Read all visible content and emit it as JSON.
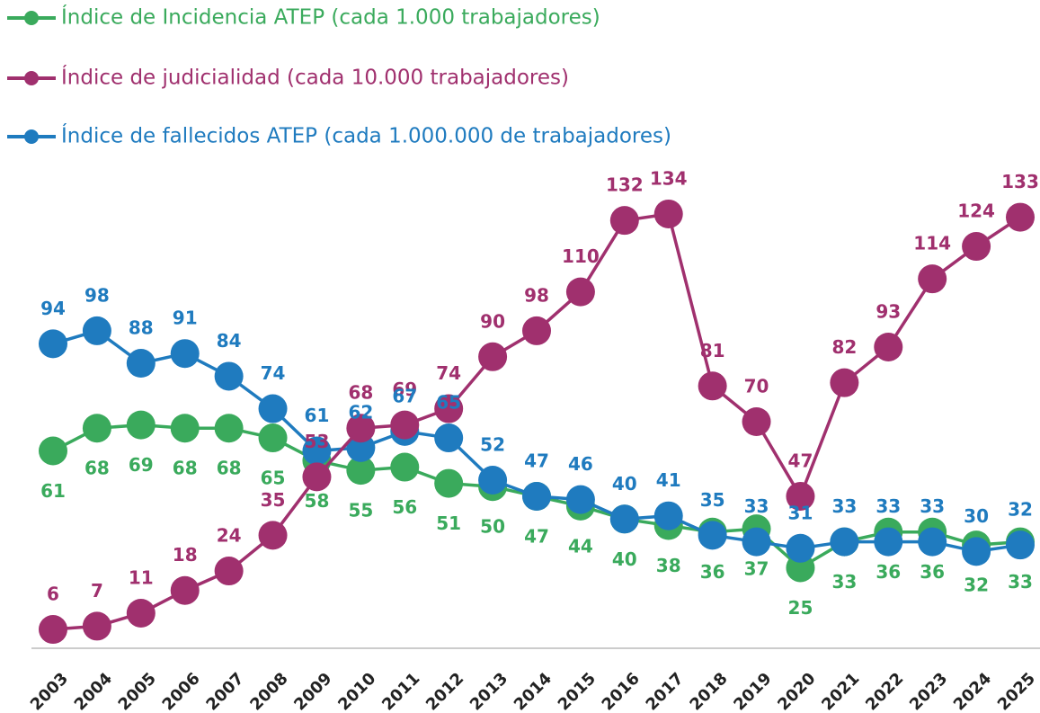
{
  "chart_data": {
    "type": "line",
    "categories": [
      "2003",
      "2004",
      "2005",
      "2006",
      "2007",
      "2008",
      "2009",
      "2010",
      "2011",
      "2012",
      "2013",
      "2014",
      "2015",
      "2016",
      "2017",
      "2018",
      "2019",
      "2020",
      "2021",
      "2022",
      "2023",
      "2024",
      "2025"
    ],
    "series": [
      {
        "name": "Índice de Incidencia ATEP (cada 1.000 trabajadores)",
        "color": "#3aaa5c",
        "values": [
          61,
          68,
          69,
          68,
          68,
          65,
          58,
          55,
          56,
          51,
          50,
          47,
          44,
          40,
          38,
          36,
          37,
          25,
          33,
          36,
          36,
          32,
          33
        ]
      },
      {
        "name": "Índice de judicialidad (cada 10.000 trabajadores)",
        "color": "#a0306e",
        "values": [
          6,
          7,
          11,
          18,
          24,
          35,
          53,
          68,
          69,
          74,
          90,
          98,
          110,
          132,
          134,
          81,
          70,
          47,
          82,
          93,
          114,
          124,
          133
        ]
      },
      {
        "name": "Índice de fallecidos ATEP (cada 1.000.000 de trabajadores)",
        "color": "#1f7bbf",
        "values": [
          94,
          98,
          88,
          91,
          84,
          74,
          61,
          62,
          67,
          65,
          52,
          47,
          46,
          40,
          41,
          35,
          33,
          31,
          33,
          33,
          33,
          30,
          32
        ]
      }
    ],
    "ylim": [
      0,
      140
    ],
    "legend": "top-left"
  }
}
